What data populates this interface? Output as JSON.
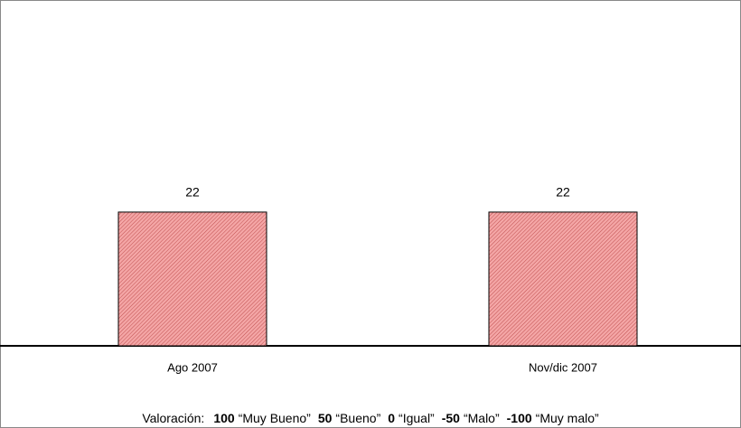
{
  "chart_data": {
    "type": "bar",
    "categories": [
      "Ago 2007",
      "Nov/dic 2007"
    ],
    "values": [
      22,
      22
    ],
    "color": "#f4a6a6",
    "ylim": [
      0,
      56
    ],
    "footnote": {
      "label": "Valoración:",
      "scale": [
        {
          "value": "100",
          "label": "“Muy Bueno”"
        },
        {
          "value": "50",
          "label": "“Bueno”"
        },
        {
          "value": "0",
          "label": "“Igual”"
        },
        {
          "value": "-50",
          "label": "“Malo”"
        },
        {
          "value": "-100",
          "label": "“Muy malo”"
        }
      ]
    }
  }
}
